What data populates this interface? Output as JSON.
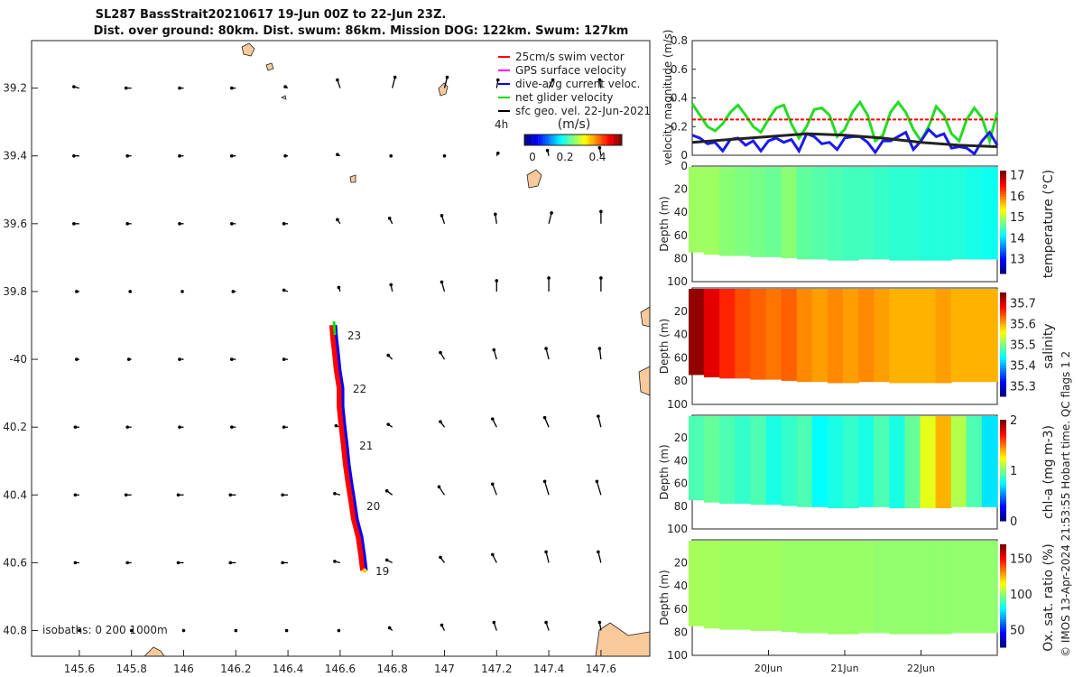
{
  "title": {
    "line1": "SL287 BassStrait20210617 19-Jun 00Z to 22-Jun 23Z.",
    "line2": "Dist. over ground: 80km. Dist. swum: 86km. Mission DOG: 122km. Swum: 127km"
  },
  "map": {
    "lon_range": [
      145.417,
      147.77
    ],
    "lat_range": [
      39.06,
      40.877
    ],
    "lon_ticks": [
      145.6,
      145.8,
      146,
      146.2,
      146.4,
      146.6,
      146.8,
      147,
      147.2,
      147.4,
      147.6
    ],
    "lon_tick_labels": [
      "145.6",
      "145.8",
      "146",
      "146.2",
      "146.4",
      "146.6",
      "146.8",
      "147",
      "147.2",
      "147.4",
      "147.6"
    ],
    "lat_ticks": [
      39.2,
      39.4,
      39.6,
      39.8,
      40.0,
      40.2,
      40.4,
      40.6,
      40.8
    ],
    "lat_tick_labels": [
      "39.2",
      "39.4",
      "39.6",
      "39.8",
      "-40",
      "40.2",
      "40.4",
      "40.6",
      "40.8"
    ],
    "isobaths_label": "isobaths: 0   200  1000m",
    "legend": [
      {
        "label": "25cm/s swim vector",
        "color": "#ff0000"
      },
      {
        "label": "GPS surface velocity",
        "color": "#ff00ff"
      },
      {
        "label": "dive-avg current veloc.",
        "color": "#0000ff"
      },
      {
        "label": "net glider velocity",
        "color": "#00dd00"
      },
      {
        "label": "sfc geo. vel. 22-Jun-2021",
        "color": "#000000"
      }
    ],
    "interval_label": "4h",
    "colorbar": {
      "title": "(m/s)",
      "range": [
        -0.05,
        0.55
      ],
      "ticks": [
        0,
        0.2,
        0.4
      ],
      "tick_labels": [
        "0",
        "0.2",
        "0.4"
      ]
    },
    "track": [
      [
        146.694,
        40.623
      ],
      [
        146.687,
        40.578
      ],
      [
        146.677,
        40.524
      ],
      [
        146.659,
        40.471
      ],
      [
        146.649,
        40.418
      ],
      [
        146.638,
        40.365
      ],
      [
        146.628,
        40.311
      ],
      [
        146.621,
        40.258
      ],
      [
        146.611,
        40.192
      ],
      [
        146.604,
        40.138
      ],
      [
        146.604,
        40.085
      ],
      [
        146.593,
        40.032
      ],
      [
        146.586,
        39.979
      ],
      [
        146.58,
        39.939
      ],
      [
        146.576,
        39.899
      ]
    ],
    "day_labels": [
      {
        "text": "19",
        "lon": 146.694,
        "lat": 40.623
      },
      {
        "text": "20",
        "lon": 146.659,
        "lat": 40.431
      },
      {
        "text": "21",
        "lon": 146.632,
        "lat": 40.253
      },
      {
        "text": "22",
        "lon": 146.607,
        "lat": 40.085
      },
      {
        "text": "23",
        "lon": 146.586,
        "lat": 39.928
      }
    ],
    "sfc_geo_vel": {
      "lon": [
        145.6,
        145.8,
        146,
        146.2,
        146.4,
        146.6,
        146.8,
        147,
        147.2,
        147.4,
        147.6
      ],
      "lat": [
        39.2,
        39.4,
        39.6,
        39.8,
        40.0,
        40.2,
        40.4,
        40.6,
        40.8
      ],
      "u": [
        [
          -0.04,
          -0.04,
          -0.03,
          -0.03,
          -0.02,
          -0.02,
          0.02,
          0.02,
          0.01,
          0.03,
          -0.01
        ],
        [
          -0.04,
          -0.03,
          -0.03,
          -0.03,
          -0.02,
          -0.02,
          -0.01,
          0.0,
          0.01,
          -0.01,
          -0.01
        ],
        [
          -0.04,
          -0.03,
          -0.03,
          -0.03,
          -0.03,
          -0.02,
          -0.02,
          -0.02,
          -0.01,
          0.02,
          0.0
        ],
        [
          -0.02,
          -0.01,
          -0.01,
          -0.02,
          -0.03,
          -0.01,
          -0.01,
          -0.02,
          0.0,
          0.0,
          0.0
        ],
        [
          -0.02,
          -0.02,
          -0.03,
          -0.03,
          -0.03,
          -0.02,
          -0.03,
          -0.03,
          -0.02,
          -0.02,
          -0.01
        ],
        [
          -0.03,
          -0.03,
          -0.03,
          -0.03,
          -0.03,
          -0.03,
          -0.03,
          -0.03,
          -0.03,
          -0.03,
          -0.02
        ],
        [
          -0.03,
          -0.04,
          -0.04,
          -0.04,
          -0.04,
          -0.04,
          -0.04,
          -0.04,
          -0.03,
          -0.03,
          -0.03
        ],
        [
          -0.03,
          -0.03,
          -0.04,
          -0.04,
          -0.04,
          -0.04,
          -0.04,
          -0.03,
          -0.03,
          -0.02,
          -0.02
        ],
        [
          0.0,
          0.0,
          0.0,
          0.0,
          -0.01,
          -0.01,
          -0.02,
          -0.02,
          -0.02,
          -0.02,
          -0.01
        ]
      ],
      "v": [
        [
          0.01,
          0.0,
          0.0,
          0.0,
          0.01,
          0.06,
          0.08,
          0.08,
          0.06,
          0.06,
          0.06
        ],
        [
          0.0,
          0.0,
          0.0,
          0.0,
          0.0,
          0.01,
          0.0,
          0.0,
          0.02,
          0.04,
          0.06
        ],
        [
          0.0,
          0.0,
          0.0,
          0.0,
          0.0,
          0.03,
          0.04,
          0.06,
          0.07,
          0.08,
          0.09
        ],
        [
          0.0,
          0.0,
          0.0,
          0.0,
          0.01,
          0.03,
          0.05,
          0.07,
          0.08,
          0.1,
          0.1
        ],
        [
          0.0,
          0.0,
          0.0,
          0.0,
          0.0,
          0.01,
          0.03,
          0.05,
          0.07,
          0.08,
          0.08
        ],
        [
          0.0,
          0.0,
          0.0,
          0.0,
          0.0,
          0.01,
          0.02,
          0.04,
          0.06,
          0.07,
          0.08
        ],
        [
          0.0,
          0.0,
          0.0,
          0.0,
          0.0,
          0.01,
          0.03,
          0.06,
          0.08,
          0.1,
          0.1
        ],
        [
          0.0,
          0.0,
          0.0,
          0.0,
          0.0,
          0.01,
          0.02,
          0.04,
          0.06,
          0.08,
          0.08
        ],
        [
          0.0,
          0.0,
          0.0,
          0.0,
          0.0,
          0.0,
          0.02,
          0.04,
          0.06,
          0.06,
          0.06
        ]
      ]
    }
  },
  "chart_data": [
    {
      "type": "line",
      "ylabel": "velocity magnitude (m/s)",
      "ylim": [
        0,
        0.8
      ],
      "yticks": [
        0,
        0.2,
        0.4,
        0.6,
        0.8
      ],
      "ytick_labels": [
        "0",
        "0.2",
        "0.4",
        "0.6",
        "0.8"
      ],
      "xlim_days": [
        0,
        4
      ],
      "x_step_days": 0.1,
      "series": [
        {
          "name": "net glider velocity",
          "color": "#22dd22",
          "values": [
            0.36,
            0.28,
            0.2,
            0.17,
            0.22,
            0.3,
            0.35,
            0.28,
            0.2,
            0.16,
            0.25,
            0.33,
            0.35,
            0.22,
            0.12,
            0.2,
            0.32,
            0.33,
            0.28,
            0.13,
            0.18,
            0.3,
            0.37,
            0.28,
            0.1,
            0.14,
            0.3,
            0.37,
            0.3,
            0.18,
            0.1,
            0.2,
            0.34,
            0.28,
            0.15,
            0.1,
            0.25,
            0.33,
            0.26,
            0.1,
            0.3
          ]
        },
        {
          "name": "dive-avg current veloc.",
          "color": "#1a1aee",
          "values": [
            0.14,
            0.12,
            0.08,
            0.09,
            0.03,
            0.11,
            0.12,
            0.07,
            0.1,
            0.03,
            0.1,
            0.12,
            0.09,
            0.11,
            0.03,
            0.15,
            0.13,
            0.08,
            0.09,
            0.04,
            0.12,
            0.13,
            0.13,
            0.09,
            0.02,
            0.1,
            0.1,
            0.13,
            0.16,
            0.04,
            0.1,
            0.18,
            0.13,
            0.15,
            0.05,
            0.06,
            0.05,
            0.01,
            0.1,
            0.16,
            0.07
          ]
        },
        {
          "name": "sfc geo. vel.",
          "color": "#222222",
          "x_step_days": 0.5,
          "values": [
            0.09,
            0.11,
            0.13,
            0.15,
            0.14,
            0.12,
            0.09,
            0.07,
            0.06
          ]
        },
        {
          "name": "25cm/s swim",
          "color": "#ff0000",
          "dashed": true,
          "values": [
            0.25,
            0.25
          ]
        }
      ]
    },
    {
      "type": "heatmap",
      "ylabel": "Depth (m)",
      "clabel": "temperature (°C)",
      "clim": [
        12.3,
        17.2
      ],
      "cticks": [
        13,
        14,
        15,
        16,
        17
      ],
      "ctick_labels": [
        "13",
        "14",
        "15",
        "16",
        "17"
      ],
      "columns": [
        14.9,
        14.9,
        14.8,
        14.75,
        14.7,
        14.65,
        14.8,
        14.6,
        14.55,
        14.5,
        14.45,
        14.45,
        14.4,
        14.35,
        14.35,
        14.3,
        14.3,
        14.3,
        14.25,
        14.2
      ],
      "bottom_depth": [
        74,
        76,
        77,
        77,
        78,
        78,
        79,
        80,
        80,
        81,
        81,
        80,
        80,
        81,
        81,
        81,
        81,
        80,
        80,
        80
      ]
    },
    {
      "type": "heatmap",
      "ylabel": "Depth (m)",
      "clabel": "salinity",
      "clim": [
        35.25,
        35.75
      ],
      "cticks": [
        35.3,
        35.4,
        35.5,
        35.6,
        35.7
      ],
      "ctick_labels": [
        "35.3",
        "35.4",
        "35.5",
        "35.6",
        "35.7"
      ],
      "columns": [
        35.74,
        35.7,
        35.67,
        35.65,
        35.64,
        35.63,
        35.64,
        35.62,
        35.61,
        35.62,
        35.61,
        35.62,
        35.61,
        35.6,
        35.6,
        35.6,
        35.61,
        35.6,
        35.6,
        35.6
      ],
      "bottom_depth": [
        74,
        76,
        77,
        77,
        78,
        78,
        79,
        80,
        80,
        81,
        81,
        80,
        80,
        81,
        81,
        81,
        81,
        80,
        80,
        80
      ]
    },
    {
      "type": "heatmap",
      "ylabel": "Depth (m)",
      "clabel": "chl-a (mg m-3)",
      "clim": [
        0,
        2
      ],
      "cticks": [
        0,
        1,
        2
      ],
      "ctick_labels": [
        "0",
        "1",
        "2"
      ],
      "columns": [
        0.9,
        0.95,
        0.9,
        0.85,
        0.9,
        0.8,
        0.85,
        0.9,
        0.75,
        0.8,
        0.85,
        0.8,
        0.9,
        0.8,
        0.95,
        1.2,
        1.4,
        1.1,
        0.9,
        0.7
      ],
      "bottom_depth": [
        74,
        76,
        77,
        77,
        78,
        78,
        79,
        80,
        80,
        81,
        81,
        80,
        80,
        81,
        81,
        81,
        81,
        80,
        80,
        80
      ]
    },
    {
      "type": "heatmap",
      "ylabel": "Depth (m)",
      "clabel": "Ox. sat. ratio (%)",
      "clim": [
        25,
        170
      ],
      "cticks": [
        50,
        100,
        150
      ],
      "ctick_labels": [
        "50",
        "100",
        "150"
      ],
      "columns": [
        103,
        103,
        102,
        102,
        102,
        102,
        101,
        101,
        101,
        101,
        101,
        101,
        100,
        100,
        100,
        100,
        100,
        100,
        100,
        100
      ],
      "bottom_depth": [
        74,
        76,
        77,
        77,
        78,
        78,
        79,
        80,
        80,
        81,
        81,
        80,
        80,
        81,
        81,
        81,
        81,
        80,
        80,
        80
      ]
    }
  ],
  "time_axis": {
    "ticks_days": [
      1,
      2,
      3
    ],
    "labels": [
      "20Jun",
      "21Jun",
      "22Jun"
    ]
  },
  "depth_ticks": {
    "values": [
      0,
      20,
      40,
      60,
      80,
      100
    ],
    "labels": [
      "0",
      "20",
      "40",
      "60",
      "80",
      "100"
    ]
  },
  "side_note": "© IMOS 13-Apr-2024 21:53:55 Hobart time. QC flags 1  2"
}
